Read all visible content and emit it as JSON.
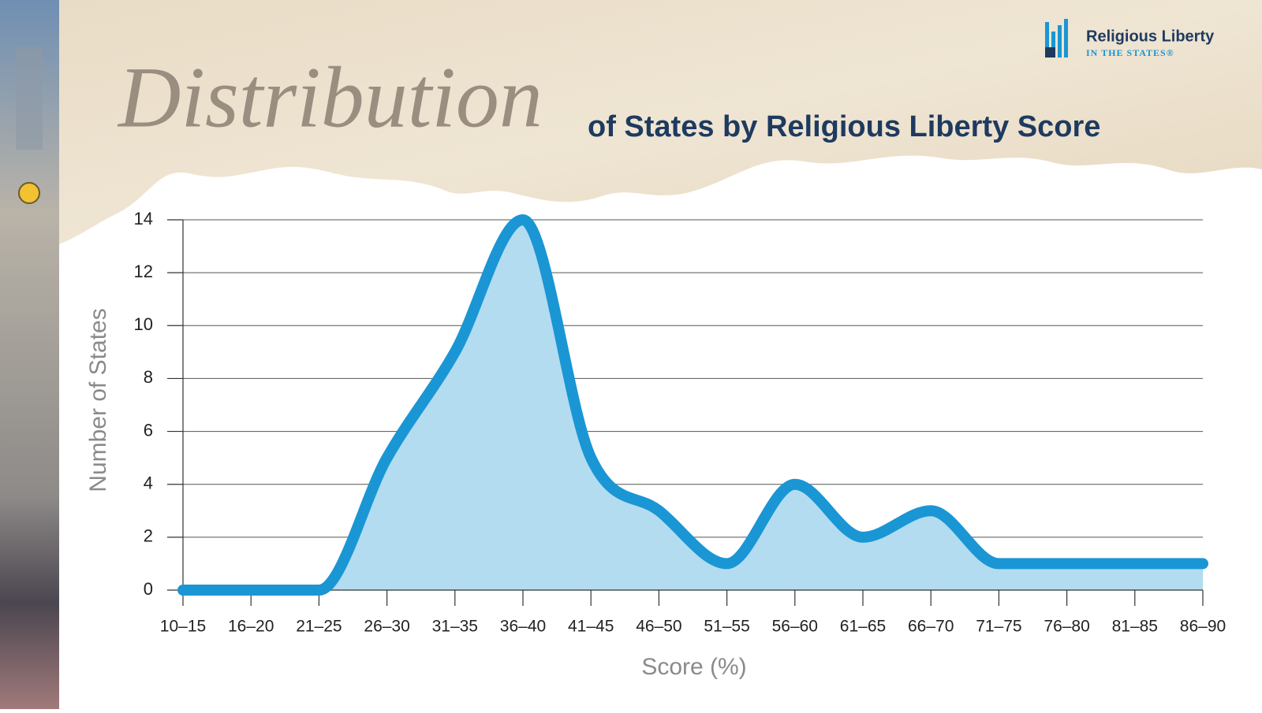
{
  "chart_data": {
    "type": "area",
    "title": "Distribution",
    "subtitle": "of States by Religious Liberty Score",
    "x_label": "Score (%)",
    "y_label": "Number of States",
    "categories": [
      "10–15",
      "16–20",
      "21–25",
      "26–30",
      "31–35",
      "36–40",
      "41–45",
      "46–50",
      "51–55",
      "56–60",
      "61–65",
      "66–70",
      "71–75",
      "76–80",
      "81–85",
      "86–90"
    ],
    "values": [
      0,
      0,
      0,
      5,
      9,
      14,
      5,
      3,
      1,
      4,
      2,
      3,
      1,
      1,
      1,
      1
    ],
    "color": "#1a96d4",
    "fill": "#b3dcf0",
    "ylim": [
      0,
      14
    ],
    "yticks": [
      0,
      2,
      4,
      6,
      8,
      10,
      12,
      14
    ],
    "grid": true
  },
  "logo": {
    "name": "Religious Liberty",
    "tagline": "IN THE STATES®"
  }
}
